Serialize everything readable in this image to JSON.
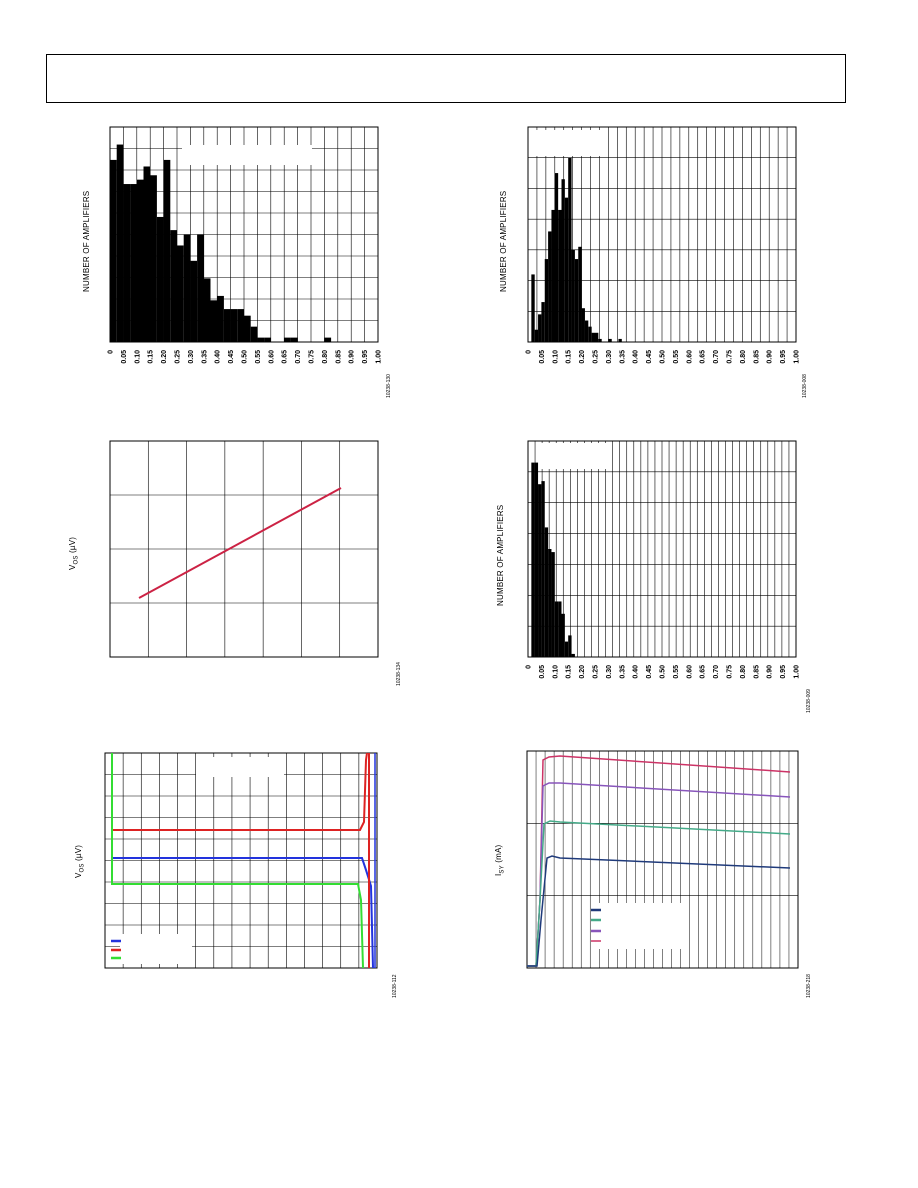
{
  "figures": [
    {
      "id": "hist-top-left",
      "ylabel": "NUMBER OF AMPLIFIERS",
      "fig_code": "10238-130",
      "ticks": [
        "0",
        "0.05",
        "0.10",
        "0.15",
        "0.20",
        "0.25",
        "0.30",
        "0.35",
        "0.40",
        "0.45",
        "0.50",
        "0.55",
        "0.60",
        "0.65",
        "0.70",
        "0.75",
        "0.80",
        "0.85",
        "0.90",
        "0.95",
        "1.00"
      ]
    },
    {
      "id": "hist-top-right",
      "ylabel": "NUMBER OF AMPLIFIERS",
      "fig_code": "10238-008",
      "ticks": [
        "0",
        "0.05",
        "0.10",
        "0.15",
        "0.20",
        "0.25",
        "0.30",
        "0.35",
        "0.40",
        "0.45",
        "0.50",
        "0.55",
        "0.60",
        "0.65",
        "0.70",
        "0.75",
        "0.80",
        "0.85",
        "0.90",
        "0.95",
        "1.00"
      ]
    },
    {
      "id": "line-mid-left",
      "ylabel_main": "V",
      "ylabel_sub": "OS",
      "ylabel_unit": " (µV)",
      "fig_code": "10238-134"
    },
    {
      "id": "hist-mid-right",
      "ylabel": "NUMBER OF AMPLIFIERS",
      "fig_code": "10238-009",
      "ticks": [
        "0",
        "0.05",
        "0.10",
        "0.15",
        "0.20",
        "0.25",
        "0.30",
        "0.35",
        "0.40",
        "0.45",
        "0.50",
        "0.55",
        "0.60",
        "0.65",
        "0.70",
        "0.75",
        "0.80",
        "0.85",
        "0.90",
        "0.95",
        "1.00"
      ]
    },
    {
      "id": "line-bottom-left",
      "ylabel_main": "V",
      "ylabel_sub": "OS",
      "ylabel_unit": " (µV)",
      "fig_code": "10238-112"
    },
    {
      "id": "line-bottom-right",
      "ylabel_main": "I",
      "ylabel_sub": "SY",
      "ylabel_unit": " (mA)",
      "fig_code": "10238-218"
    }
  ],
  "chart_data": [
    {
      "type": "bar",
      "categories": [
        "0",
        "0.025",
        "0.05",
        "0.075",
        "0.10",
        "0.125",
        "0.15",
        "0.175",
        "0.20",
        "0.225",
        "0.25",
        "0.275",
        "0.30",
        "0.325",
        "0.35",
        "0.375",
        "0.40",
        "0.425",
        "0.45",
        "0.475",
        "0.50",
        "0.525",
        "0.55",
        "0.575",
        "0.60",
        "0.625",
        "0.65",
        "0.675",
        "0.70",
        "0.725",
        "0.75",
        "0.775",
        "0.80"
      ],
      "values": [
        83,
        90,
        72,
        72,
        74,
        80,
        76,
        57,
        83,
        51,
        44,
        49,
        37,
        49,
        29,
        19,
        21,
        15,
        15,
        15,
        12,
        7,
        2,
        2,
        0,
        0,
        2,
        2,
        0,
        0,
        0,
        0,
        2
      ],
      "ylim": [
        0,
        98
      ],
      "xlim": [
        0,
        1.0
      ],
      "grid": true,
      "color": "#000000"
    },
    {
      "type": "bar",
      "categories": [
        "0",
        "0.0125",
        "0.025",
        "0.0375",
        "0.05",
        "0.0625",
        "0.075",
        "0.0875",
        "0.10",
        "0.1125",
        "0.125",
        "0.1375",
        "0.15",
        "0.1625",
        "0.175",
        "0.1875",
        "0.20",
        "0.2125",
        "0.225",
        "0.2375",
        "0.25",
        "0.2625",
        "0.275",
        "0.2875",
        "0.30",
        "0.3125",
        "0.325",
        "0.3375",
        "0.35",
        "0.3625",
        "0.375"
      ],
      "values": [
        0,
        22,
        4,
        9,
        13,
        27,
        36,
        43,
        55,
        43,
        53,
        47,
        60,
        30,
        27,
        31,
        11,
        7,
        5,
        3,
        3,
        1,
        0,
        0,
        1,
        0,
        0,
        1,
        0,
        0,
        0
      ],
      "ylim": [
        0,
        70
      ],
      "xlim": [
        0,
        1.0
      ],
      "grid": true,
      "color": "#000000"
    },
    {
      "type": "line",
      "series": [
        {
          "x": [
            0,
            1
          ],
          "y": [
            0.21,
            0.71
          ],
          "color": "#cc2244"
        }
      ],
      "xlim": [
        -0.1,
        1.2
      ],
      "ylim": [
        0,
        1
      ],
      "grid": true
    },
    {
      "type": "bar",
      "categories": [
        "0",
        "0.0125",
        "0.025",
        "0.0375",
        "0.05",
        "0.0625",
        "0.075",
        "0.0875",
        "0.10",
        "0.1125",
        "0.125",
        "0.1375",
        "0.15",
        "0.1625",
        "0.175",
        "0.1875",
        "0.20",
        "0.2125",
        "0.225",
        "0.2375",
        "0.25",
        "0.2625",
        "0.275",
        "0.2875",
        "0.30"
      ],
      "values": [
        0,
        63,
        63,
        56,
        57,
        42,
        35,
        34,
        18,
        18,
        14,
        5,
        7,
        1,
        0,
        0,
        0,
        0,
        0,
        0,
        0,
        0,
        0,
        0,
        0
      ],
      "ylim": [
        0,
        70
      ],
      "xlim": [
        0,
        1.0
      ],
      "grid": true,
      "color": "#000000"
    },
    {
      "type": "line",
      "series": [
        {
          "x": [
            0,
            0.97
          ],
          "y": [
            0.62,
            0.62
          ],
          "color": "#dd2222"
        },
        {
          "x": [
            0,
            0.97
          ],
          "y": [
            0.5,
            0.5
          ],
          "color": "#2233dd"
        },
        {
          "x": [
            0,
            0.96
          ],
          "y": [
            0.38,
            0.38
          ],
          "color": "#33dd33"
        }
      ],
      "legend": {
        "placement": "bottom-left"
      },
      "grid": true
    },
    {
      "type": "line",
      "series": [
        {
          "x": [
            0.05,
            1
          ],
          "y": [
            0.97,
            0.9
          ],
          "color": "#cc3366"
        },
        {
          "x": [
            0.05,
            1
          ],
          "y": [
            0.84,
            0.78
          ],
          "color": "#8855bb"
        },
        {
          "x": [
            0.05,
            1
          ],
          "y": [
            0.67,
            0.61
          ],
          "color": "#44aa88"
        },
        {
          "x": [
            0.05,
            1
          ],
          "y": [
            0.5,
            0.45
          ],
          "color": "#1f3a7a"
        }
      ],
      "legend": {
        "placement": "center-left"
      },
      "grid": true
    }
  ]
}
